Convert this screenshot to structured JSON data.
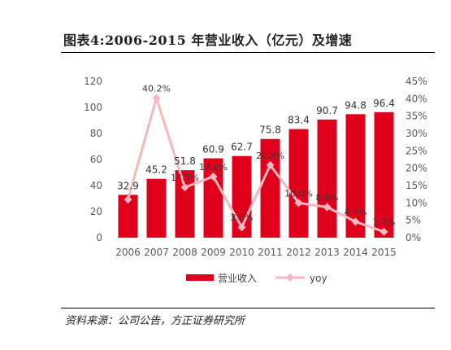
{
  "title": "图表4:2006-2015 年营业收入（亿元）及增速",
  "source": "资料来源：公司公告，方正证券研究所",
  "colors": {
    "bar": "#E0001B",
    "line": "#F6B7BE"
  },
  "chart_data": {
    "type": "bar",
    "categories": [
      "2006",
      "2007",
      "2008",
      "2009",
      "2010",
      "2011",
      "2012",
      "2013",
      "2014",
      "2015"
    ],
    "series": [
      {
        "name": "营业收入",
        "type": "bar",
        "axis": "left",
        "values": [
          32.9,
          45.2,
          51.8,
          60.9,
          62.7,
          75.8,
          83.4,
          90.7,
          94.8,
          96.4
        ],
        "labels": [
          "32.9",
          "45.2",
          "51.8",
          "60.9",
          "62.7",
          "75.8",
          "83.4",
          "90.7",
          "94.8",
          "96.4"
        ]
      },
      {
        "name": "yoy",
        "type": "line",
        "axis": "right",
        "values": [
          11.0,
          40.2,
          14.5,
          17.6,
          3.0,
          20.9,
          10.0,
          8.8,
          4.6,
          1.7
        ],
        "labels": [
          "",
          "40.2%",
          "14.5%",
          "17.6%",
          "3.0%",
          "20.9%",
          "10.0%",
          "8.8%",
          "4.6%",
          "1.7%"
        ]
      }
    ],
    "yleft": {
      "ylim": [
        0,
        120
      ],
      "ticks": [
        "0",
        "20",
        "40",
        "60",
        "80",
        "100",
        "120"
      ]
    },
    "yright": {
      "ylim": [
        0,
        45
      ],
      "ticks": [
        "0%",
        "5%",
        "10%",
        "15%",
        "20%",
        "25%",
        "30%",
        "35%",
        "40%",
        "45%"
      ]
    },
    "legend": "bottom",
    "grid": false
  }
}
